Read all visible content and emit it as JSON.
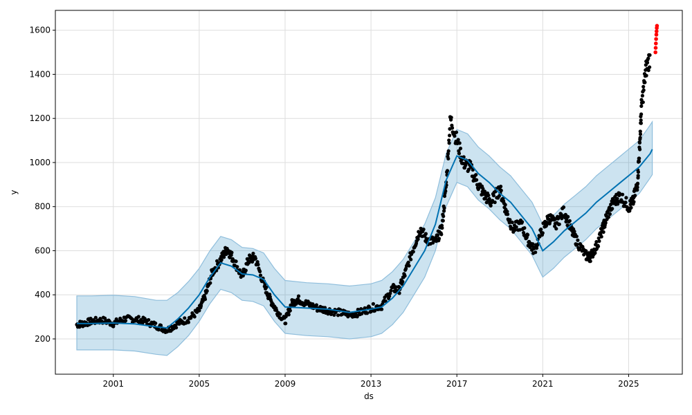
{
  "chart_data": {
    "type": "line",
    "title": "",
    "xlabel": "ds",
    "ylabel": "y",
    "xlim": [
      1998.3,
      2027.5
    ],
    "ylim": [
      40,
      1690
    ],
    "x_ticks": [
      2001,
      2005,
      2009,
      2013,
      2017,
      2021,
      2025
    ],
    "x_tick_labels": [
      "2001",
      "2005",
      "2009",
      "2013",
      "2017",
      "2021",
      "2025"
    ],
    "y_ticks": [
      200,
      400,
      600,
      800,
      1000,
      1200,
      1400,
      1600
    ],
    "y_tick_labels": [
      "200",
      "400",
      "600",
      "800",
      "1000",
      "1200",
      "1400",
      "1600"
    ],
    "grid": true,
    "colors": {
      "observed": "#000000",
      "forecast": "#0072B2",
      "interval": "#0072B2",
      "highlight": "#ff0000"
    },
    "series": [
      {
        "role": "forecast",
        "x": [
          1999.3,
          2000.0,
          2001.0,
          2002.0,
          2003.0,
          2003.5,
          2004.0,
          2004.5,
          2005.0,
          2005.5,
          2006.0,
          2006.5,
          2007.0,
          2007.5,
          2008.0,
          2008.5,
          2009.0,
          2010.0,
          2011.0,
          2012.0,
          2013.0,
          2013.5,
          2014.0,
          2014.5,
          2015.0,
          2015.5,
          2016.0,
          2016.5,
          2017.0,
          2017.5,
          2018.0,
          2018.5,
          2019.0,
          2019.5,
          2020.0,
          2020.5,
          2021.0,
          2021.5,
          2022.0,
          2022.5,
          2023.0,
          2023.5,
          2024.0,
          2024.5,
          2025.0,
          2025.5,
          2026.0,
          2026.1
        ],
        "y": [
          270,
          270,
          272,
          268,
          255,
          250,
          290,
          340,
          400,
          480,
          545,
          530,
          495,
          490,
          470,
          400,
          345,
          340,
          335,
          320,
          335,
          345,
          385,
          440,
          520,
          600,
          720,
          920,
          1030,
          1010,
          950,
          910,
          860,
          820,
          760,
          700,
          600,
          640,
          690,
          730,
          770,
          820,
          860,
          900,
          940,
          980,
          1040,
          1060
        ]
      },
      {
        "role": "interval_upper",
        "x": [
          1999.3,
          2000.0,
          2001.0,
          2002.0,
          2003.0,
          2003.5,
          2004.0,
          2004.5,
          2005.0,
          2005.5,
          2006.0,
          2006.5,
          2007.0,
          2007.5,
          2008.0,
          2008.5,
          2009.0,
          2010.0,
          2011.0,
          2012.0,
          2013.0,
          2013.5,
          2014.0,
          2014.5,
          2015.0,
          2015.5,
          2016.0,
          2016.5,
          2017.0,
          2017.5,
          2018.0,
          2018.5,
          2019.0,
          2019.5,
          2020.0,
          2020.5,
          2021.0,
          2021.5,
          2022.0,
          2022.5,
          2023.0,
          2023.5,
          2024.0,
          2024.5,
          2025.0,
          2025.5,
          2026.0,
          2026.1
        ],
        "y": [
          395,
          395,
          398,
          392,
          375,
          375,
          410,
          460,
          520,
          600,
          665,
          650,
          615,
          610,
          590,
          520,
          465,
          455,
          450,
          440,
          450,
          465,
          505,
          560,
          640,
          720,
          840,
          1040,
          1150,
          1130,
          1070,
          1030,
          980,
          940,
          880,
          820,
          720,
          760,
          810,
          850,
          890,
          940,
          980,
          1020,
          1060,
          1100,
          1170,
          1185
        ]
      },
      {
        "role": "interval_lower",
        "x": [
          1999.3,
          2000.0,
          2001.0,
          2002.0,
          2003.0,
          2003.5,
          2004.0,
          2004.5,
          2005.0,
          2005.5,
          2006.0,
          2006.5,
          2007.0,
          2007.5,
          2008.0,
          2008.5,
          2009.0,
          2010.0,
          2011.0,
          2012.0,
          2013.0,
          2013.5,
          2014.0,
          2014.5,
          2015.0,
          2015.5,
          2016.0,
          2016.5,
          2017.0,
          2017.5,
          2018.0,
          2018.5,
          2019.0,
          2019.5,
          2020.0,
          2020.5,
          2021.0,
          2021.5,
          2022.0,
          2022.5,
          2023.0,
          2023.5,
          2024.0,
          2024.5,
          2025.0,
          2025.5,
          2026.0,
          2026.1
        ],
        "y": [
          150,
          150,
          150,
          145,
          130,
          125,
          165,
          215,
          280,
          360,
          425,
          410,
          375,
          370,
          350,
          280,
          225,
          215,
          210,
          200,
          210,
          225,
          265,
          320,
          400,
          480,
          600,
          800,
          910,
          890,
          830,
          790,
          740,
          700,
          640,
          580,
          480,
          520,
          570,
          610,
          650,
          700,
          740,
          780,
          820,
          860,
          930,
          945
        ]
      },
      {
        "role": "observed",
        "x": [
          1999.3,
          1999.6,
          2000.0,
          2000.5,
          2001.0,
          2001.5,
          2002.0,
          2002.5,
          2003.0,
          2003.5,
          2004.0,
          2004.5,
          2005.0,
          2005.3,
          2005.6,
          2006.0,
          2006.3,
          2006.6,
          2007.0,
          2007.3,
          2007.6,
          2008.0,
          2008.3,
          2008.6,
          2009.0,
          2009.3,
          2009.6,
          2010.0,
          2010.5,
          2011.0,
          2011.5,
          2012.0,
          2012.5,
          2013.0,
          2013.5,
          2014.0,
          2014.3,
          2014.6,
          2015.0,
          2015.3,
          2015.6,
          2016.0,
          2016.3,
          2016.5,
          2016.7,
          2017.0,
          2017.3,
          2017.6,
          2018.0,
          2018.3,
          2018.6,
          2019.0,
          2019.3,
          2019.6,
          2020.0,
          2020.3,
          2020.6,
          2021.0,
          2021.3,
          2021.6,
          2022.0,
          2022.3,
          2022.6,
          2023.0,
          2023.2,
          2023.5,
          2023.8,
          2024.0,
          2024.3,
          2024.6,
          2025.0,
          2025.2,
          2025.4,
          2025.5,
          2025.6,
          2025.8,
          2026.0
        ],
        "y": [
          265,
          270,
          280,
          285,
          270,
          290,
          290,
          280,
          260,
          240,
          270,
          290,
          330,
          400,
          500,
          560,
          610,
          560,
          480,
          560,
          570,
          450,
          380,
          330,
          280,
          360,
          380,
          360,
          340,
          330,
          320,
          310,
          320,
          340,
          350,
          430,
          420,
          500,
          620,
          700,
          650,
          640,
          700,
          900,
          1200,
          1100,
          1000,
          980,
          900,
          850,
          820,
          880,
          780,
          700,
          720,
          650,
          600,
          700,
          750,
          720,
          780,
          700,
          640,
          580,
          570,
          620,
          700,
          760,
          820,
          850,
          800,
          820,
          900,
          1050,
          1250,
          1420,
          1480
        ]
      },
      {
        "role": "highlight",
        "x": [
          2026.25,
          2026.26,
          2026.27,
          2026.28,
          2026.29,
          2026.3,
          2026.31,
          2026.32
        ],
        "y": [
          1500,
          1520,
          1540,
          1560,
          1580,
          1595,
          1610,
          1620
        ]
      }
    ]
  }
}
